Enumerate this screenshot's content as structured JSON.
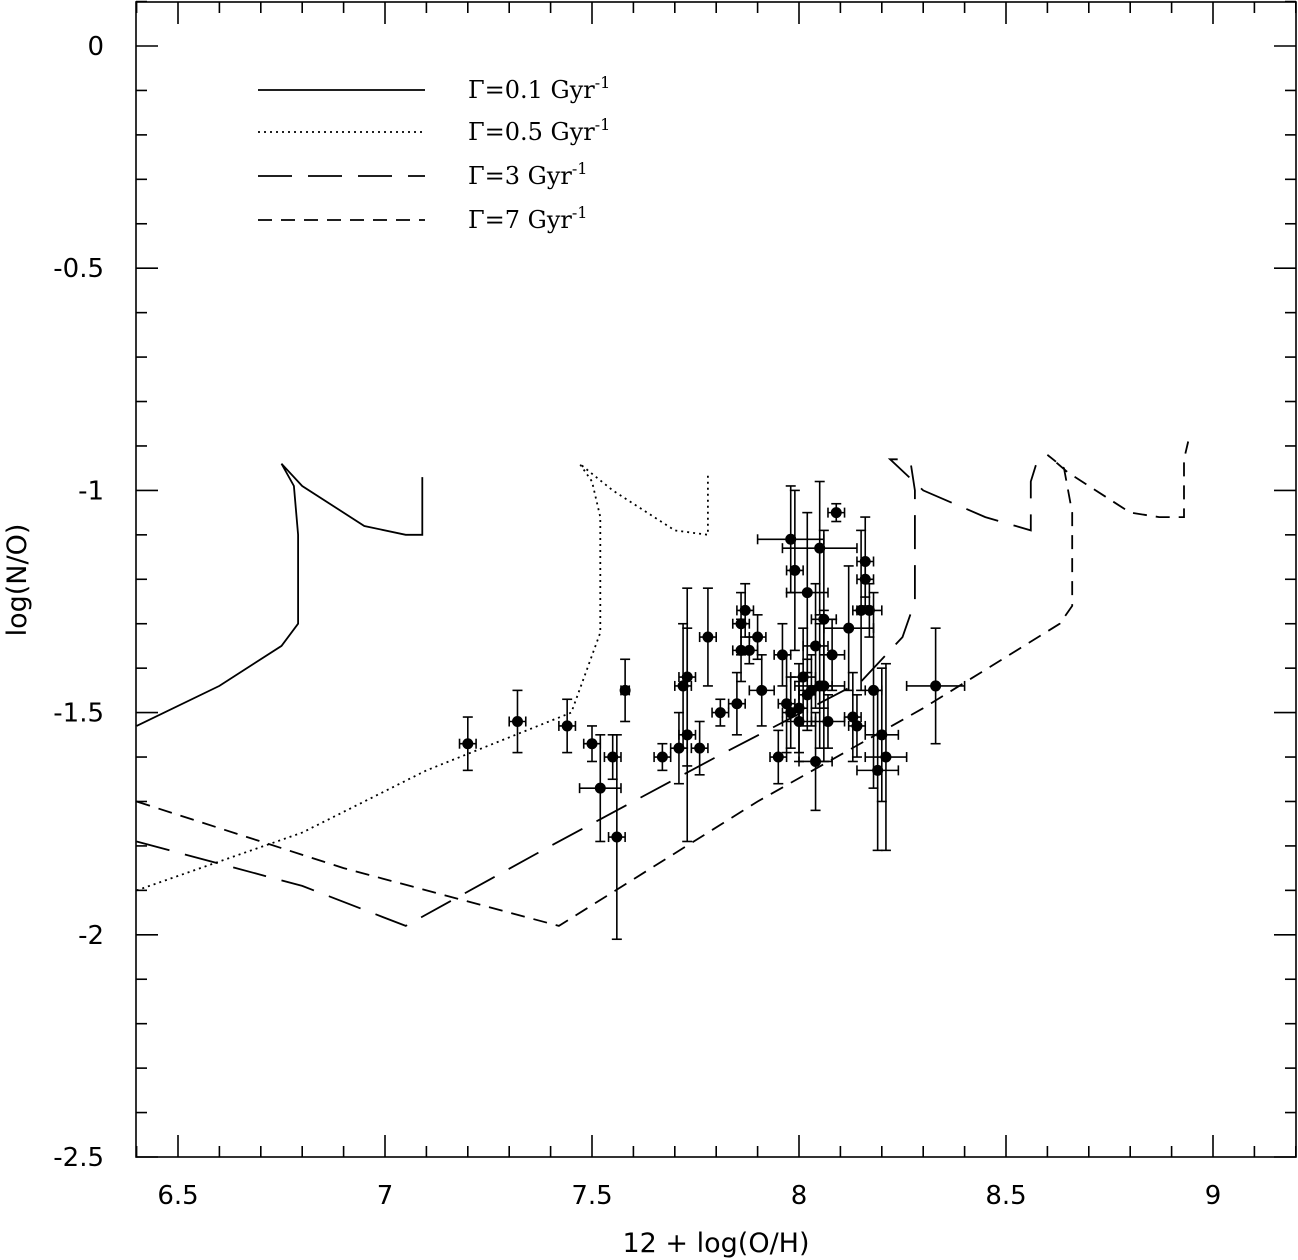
{
  "chart_data": {
    "type": "scatter",
    "xlabel": "12 + log(O/H)",
    "ylabel": "log(N/O)",
    "xlim": [
      6.4,
      9.2
    ],
    "ylim": [
      -2.5,
      0.1
    ],
    "xticks": [
      6.5,
      7,
      7.5,
      8,
      8.5,
      9
    ],
    "xtick_labels": [
      "6.5",
      "7",
      "7.5",
      "8",
      "8.5",
      "9"
    ],
    "yticks": [
      0,
      -0.5,
      -1,
      -1.5,
      -2,
      -2.5
    ],
    "ytick_labels": [
      "0",
      "-0.5",
      "-1",
      "-1.5",
      "-2",
      "-2.5"
    ],
    "legend_position": "top-left",
    "legend": [
      {
        "label": "Γ=0.1 Gyr",
        "sup": "-1",
        "style": "solid"
      },
      {
        "label": "Γ=0.5 Gyr",
        "sup": "-1",
        "style": "dotted"
      },
      {
        "label": "Γ=3 Gyr",
        "sup": "-1",
        "style": "long-dash"
      },
      {
        "label": "Γ=7 Gyr",
        "sup": "-1",
        "style": "short-dash"
      }
    ],
    "model_tracks": [
      {
        "style": "solid",
        "x": [
          6.4,
          6.6,
          6.75,
          6.79,
          6.79,
          6.78,
          6.75,
          6.8,
          6.95,
          7.05,
          7.09,
          7.09
        ],
        "y": [
          -1.53,
          -1.44,
          -1.35,
          -1.3,
          -1.1,
          -0.99,
          -0.94,
          -0.99,
          -1.08,
          -1.1,
          -1.1,
          -0.97
        ]
      },
      {
        "style": "dotted",
        "x": [
          6.4,
          6.8,
          7.1,
          7.45,
          7.52,
          7.52,
          7.5,
          7.47,
          7.55,
          7.7,
          7.78,
          7.78
        ],
        "y": [
          -1.9,
          -1.77,
          -1.63,
          -1.5,
          -1.32,
          -1.06,
          -0.98,
          -0.94,
          -1.0,
          -1.09,
          -1.1,
          -0.96
        ]
      },
      {
        "style": "long-dash",
        "x": [
          6.4,
          6.8,
          7.05,
          7.4,
          7.8,
          8.15,
          8.25,
          8.28,
          8.28,
          8.27,
          8.25,
          8.22,
          8.3,
          8.45,
          8.56,
          8.56,
          8.58
        ],
        "y": [
          -1.79,
          -1.89,
          -1.98,
          -1.8,
          -1.6,
          -1.43,
          -1.33,
          -1.25,
          -1.0,
          -0.94,
          -0.93,
          -0.93,
          -1.0,
          -1.06,
          -1.09,
          -0.98,
          -0.92
        ]
      },
      {
        "style": "short-dash",
        "x": [
          6.4,
          6.9,
          7.42,
          7.9,
          8.3,
          8.63,
          8.66,
          8.66,
          8.64,
          8.6,
          8.65,
          8.8,
          8.87,
          8.93,
          8.93,
          8.94
        ],
        "y": [
          -1.7,
          -1.85,
          -1.98,
          -1.7,
          -1.49,
          -1.3,
          -1.26,
          -1.05,
          -0.95,
          -0.92,
          -0.96,
          -1.05,
          -1.06,
          -1.06,
          -0.93,
          -0.89
        ]
      }
    ],
    "series": [
      {
        "x": [
          7.2,
          7.32,
          7.44,
          7.5,
          7.52,
          7.55,
          7.56,
          7.58,
          7.67,
          7.71,
          7.72,
          7.73,
          7.73,
          7.76,
          7.78,
          7.81,
          7.85,
          7.86,
          7.86,
          7.87,
          7.88,
          7.9,
          7.91,
          7.95,
          7.96,
          7.97,
          7.98,
          7.99,
          8.0,
          8.01,
          8.02,
          8.03,
          8.04,
          8.04,
          8.05,
          8.05,
          8.06,
          8.06,
          8.07,
          8.08,
          8.09,
          8.12,
          8.13,
          8.14,
          8.15,
          8.16,
          8.16,
          8.17,
          8.18,
          8.19,
          8.2,
          8.21,
          8.33,
          8.0,
          8.02,
          7.98
        ],
        "y": [
          -1.57,
          -1.52,
          -1.53,
          -1.57,
          -1.67,
          -1.6,
          -1.78,
          -1.45,
          -1.6,
          -1.58,
          -1.44,
          -1.42,
          -1.55,
          -1.58,
          -1.33,
          -1.5,
          -1.48,
          -1.3,
          -1.36,
          -1.27,
          -1.36,
          -1.33,
          -1.45,
          -1.6,
          -1.37,
          -1.48,
          -1.11,
          -1.18,
          -1.52,
          -1.42,
          -1.23,
          -1.45,
          -1.61,
          -1.35,
          -1.44,
          -1.13,
          -1.29,
          -1.44,
          -1.52,
          -1.37,
          -1.05,
          -1.31,
          -1.51,
          -1.53,
          -1.27,
          -1.16,
          -1.2,
          -1.27,
          -1.45,
          -1.63,
          -1.55,
          -1.6,
          -1.44,
          -1.49,
          -1.46,
          -1.5
        ],
        "yerr": [
          0.06,
          0.07,
          0.06,
          0.04,
          0.12,
          0.05,
          0.23,
          0.07,
          0.03,
          0.08,
          0.14,
          0.2,
          0.24,
          0.06,
          0.11,
          0.03,
          0.07,
          0.07,
          0.07,
          0.06,
          0.03,
          0.05,
          0.08,
          0.06,
          0.07,
          0.11,
          0.12,
          0.18,
          0.09,
          0.11,
          0.18,
          0.08,
          0.11,
          0.14,
          0.14,
          0.15,
          0.2,
          0.17,
          0.06,
          0.08,
          0.02,
          0.14,
          0.1,
          0.07,
          0.18,
          0.1,
          0.04,
          0.06,
          0.22,
          0.18,
          0.15,
          0.21,
          0.13,
          0.1,
          0.08,
          0.08
        ],
        "xerr": [
          0.02,
          0.02,
          0.02,
          0.02,
          0.05,
          0.02,
          0.02,
          0.01,
          0.02,
          0.02,
          0.02,
          0.02,
          0.02,
          0.02,
          0.02,
          0.02,
          0.02,
          0.02,
          0.02,
          0.02,
          0.02,
          0.02,
          0.03,
          0.02,
          0.02,
          0.02,
          0.08,
          0.02,
          0.04,
          0.03,
          0.05,
          0.03,
          0.04,
          0.03,
          0.06,
          0.09,
          0.03,
          0.02,
          0.04,
          0.03,
          0.02,
          0.06,
          0.02,
          0.02,
          0.02,
          0.02,
          0.02,
          0.03,
          0.02,
          0.05,
          0.04,
          0.05,
          0.07,
          0.02,
          0.02,
          0.02
        ]
      }
    ]
  }
}
